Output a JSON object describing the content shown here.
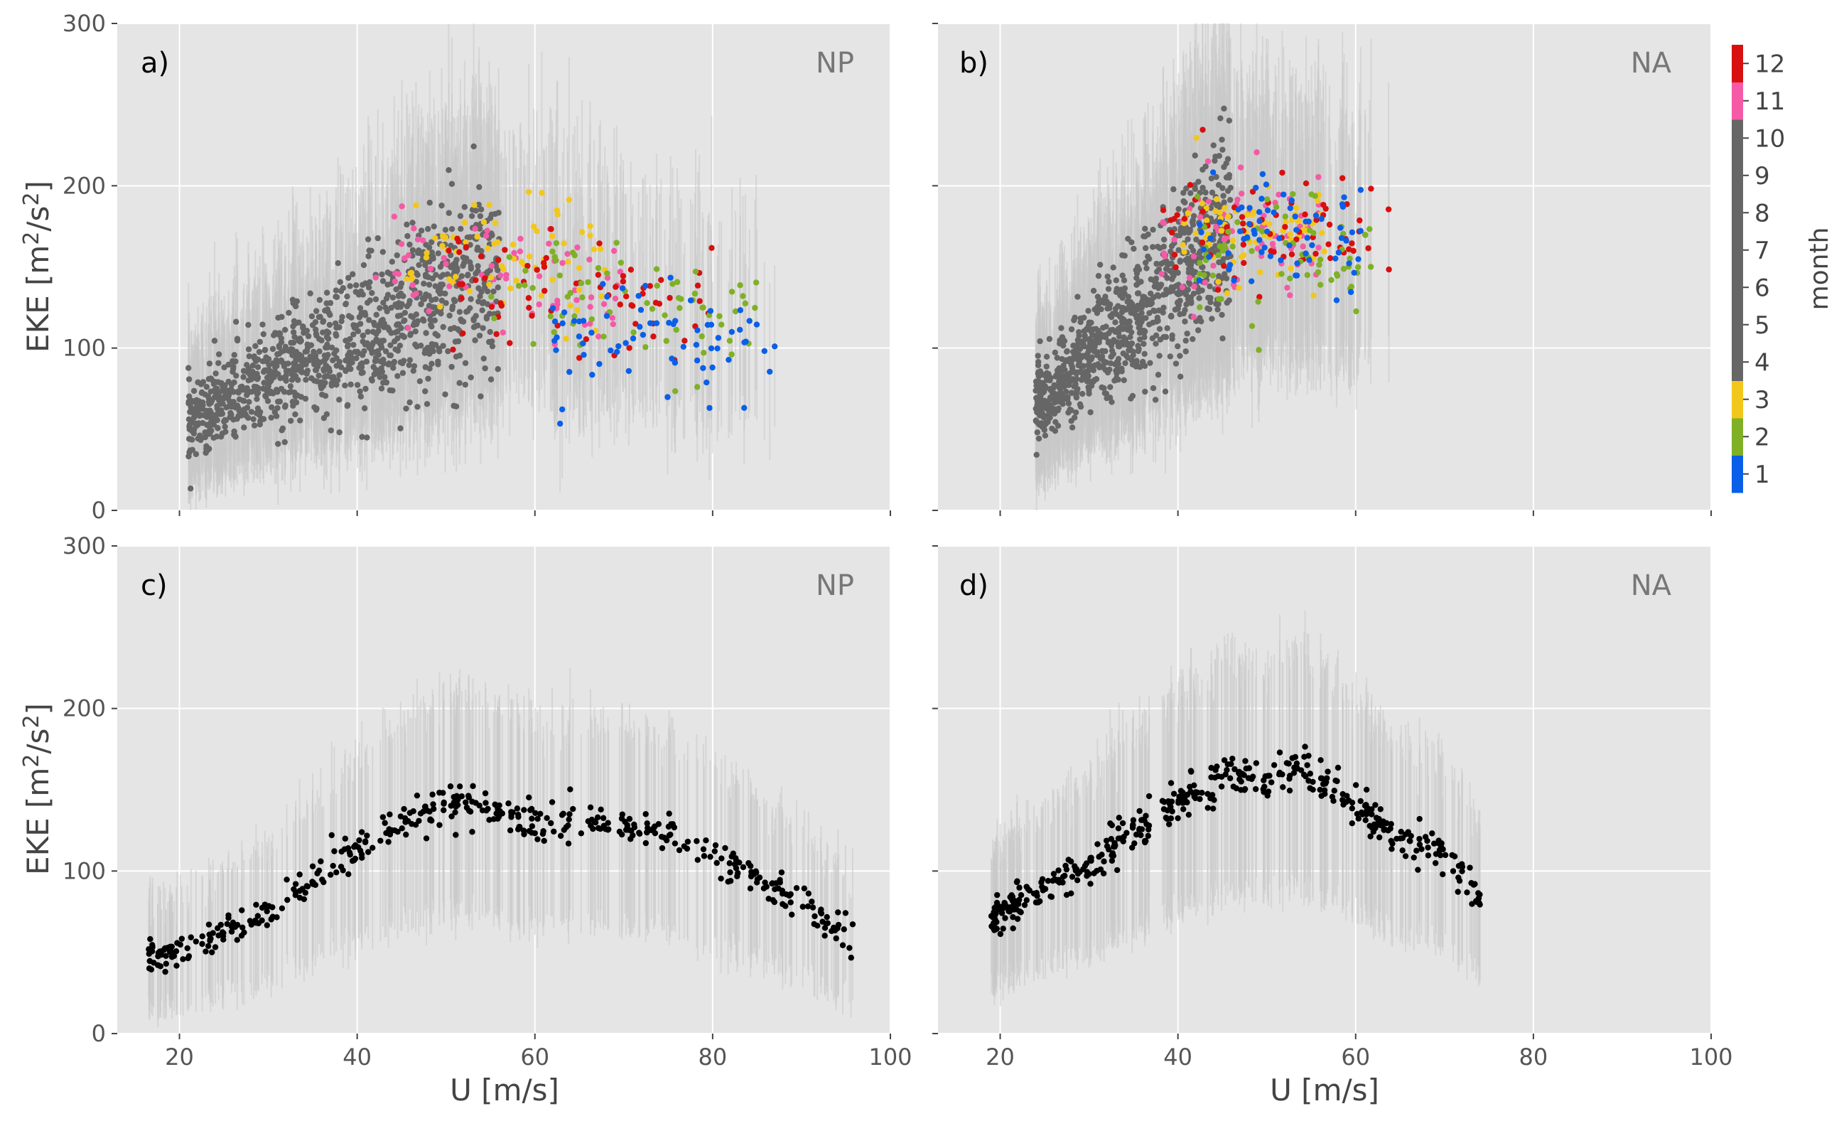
{
  "figure": {
    "colorbar": {
      "label": "month",
      "ticks": [
        "1",
        "2",
        "3",
        "4",
        "5",
        "6",
        "7",
        "8",
        "9",
        "10",
        "11",
        "12"
      ],
      "colors": [
        "#0a5fe8",
        "#7fb026",
        "#f2c71c",
        "#666666",
        "#666666",
        "#666666",
        "#666666",
        "#666666",
        "#666666",
        "#666666",
        "#f45aa6",
        "#d80f0f"
      ]
    }
  },
  "chart_data": [
    {
      "panel": "a",
      "type": "scatter",
      "label": "a)",
      "region": "NP",
      "xlabel": "",
      "ylabel": "EKE [m²/s²]",
      "xlim": [
        13,
        100
      ],
      "ylim": [
        0,
        300
      ],
      "xticks": [
        20,
        40,
        60,
        80,
        100
      ],
      "yticks": [
        0,
        100,
        200,
        300
      ],
      "grid": true,
      "color_by": "month",
      "series": [
        {
          "months": "4-10",
          "color": "#666666",
          "x_range": [
            21,
            56
          ],
          "y_approx": "40-220, rising with U",
          "n_points_approx": 1100
        },
        {
          "months": "11",
          "color": "#f45aa6",
          "x_range": [
            42,
            70
          ],
          "y_center": 140
        },
        {
          "months": "3",
          "color": "#f2c71c",
          "x_range": [
            45,
            68
          ],
          "y_center": 155
        },
        {
          "months": "12",
          "color": "#d80f0f",
          "x_range": [
            50,
            80
          ],
          "y_center": 135
        },
        {
          "months": "2",
          "color": "#7fb026",
          "x_range": [
            55,
            85
          ],
          "y_center": 130
        },
        {
          "months": "1",
          "color": "#0a5fe8",
          "x_range": [
            62,
            87
          ],
          "y_center": 115
        }
      ],
      "errorbars": {
        "color": "#c8c8c8",
        "orientation": "vertical"
      }
    },
    {
      "panel": "b",
      "type": "scatter",
      "label": "b)",
      "region": "NA",
      "xlabel": "",
      "ylabel": "",
      "xlim": [
        13,
        100
      ],
      "ylim": [
        0,
        300
      ],
      "xticks": [
        20,
        40,
        60,
        80,
        100
      ],
      "yticks": [
        0,
        100,
        200,
        300
      ],
      "grid": true,
      "color_by": "month",
      "series": [
        {
          "months": "4-10",
          "color": "#666666",
          "x_range": [
            24,
            46
          ],
          "y_approx": "45-200, rising with U",
          "n_points_approx": 900
        },
        {
          "months": "11",
          "color": "#f45aa6",
          "x_range": [
            38,
            56
          ],
          "y_center": 170
        },
        {
          "months": "3",
          "color": "#f2c71c",
          "x_range": [
            40,
            57
          ],
          "y_center": 170
        },
        {
          "months": "12",
          "color": "#d80f0f",
          "x_range": [
            38,
            64
          ],
          "y_center": 170
        },
        {
          "months": "2",
          "color": "#7fb026",
          "x_range": [
            42,
            62
          ],
          "y_center": 160
        },
        {
          "months": "1",
          "color": "#0a5fe8",
          "x_range": [
            42,
            61
          ],
          "y_center": 165
        }
      ],
      "errorbars": {
        "color": "#c8c8c8",
        "orientation": "vertical"
      }
    },
    {
      "panel": "c",
      "type": "scatter",
      "label": "c)",
      "region": "NP",
      "xlabel": "U [m/s]",
      "ylabel": "EKE [m²/s²]",
      "xlim": [
        13,
        100
      ],
      "ylim": [
        0,
        300
      ],
      "xticks": [
        20,
        40,
        60,
        80,
        100
      ],
      "yticks": [
        0,
        100,
        200,
        300
      ],
      "grid": true,
      "series": [
        {
          "color": "#000000",
          "trend_x": [
            16.5,
            20,
            25,
            30,
            35,
            40,
            45,
            50,
            55,
            60,
            65,
            70,
            75,
            80,
            85,
            90,
            93.5,
            96.5
          ],
          "trend_y": [
            48,
            52,
            62,
            78,
            95,
            112,
            127,
            140,
            135,
            130,
            133,
            128,
            122,
            110,
            97,
            80,
            66,
            58
          ],
          "n_points_approx": 450
        }
      ],
      "errorbars": {
        "color": "#c8c8c8",
        "orientation": "vertical"
      }
    },
    {
      "panel": "d",
      "type": "scatter",
      "label": "d)",
      "region": "NA",
      "xlabel": "U [m/s]",
      "ylabel": "",
      "xlim": [
        13,
        100
      ],
      "ylim": [
        0,
        300
      ],
      "xticks": [
        20,
        40,
        60,
        80,
        100
      ],
      "yticks": [
        0,
        100,
        200,
        300
      ],
      "grid": true,
      "series": [
        {
          "color": "#000000",
          "trend_x": [
            19,
            22,
            26,
            30,
            34,
            38,
            42,
            46,
            50,
            54,
            58,
            62,
            66,
            70,
            74
          ],
          "trend_y": [
            68,
            82,
            92,
            105,
            120,
            135,
            152,
            158,
            155,
            162,
            148,
            130,
            118,
            110,
            84
          ],
          "n_points_approx": 420
        }
      ],
      "errorbars": {
        "color": "#c8c8c8",
        "orientation": "vertical"
      }
    }
  ]
}
